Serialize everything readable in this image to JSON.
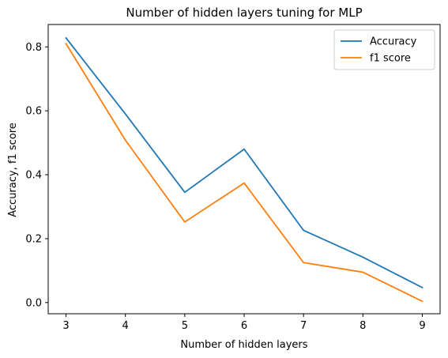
{
  "chart_data": {
    "type": "line",
    "title": "Number of hidden layers tuning for MLP",
    "xlabel": "Number of hidden layers",
    "ylabel": "Accuracy, f1 score",
    "x": [
      3,
      4,
      5,
      6,
      7,
      8,
      9
    ],
    "xticks": [
      "3",
      "4",
      "5",
      "6",
      "7",
      "8",
      "9"
    ],
    "yticks": [
      "0.0",
      "0.2",
      "0.4",
      "0.6",
      "0.8"
    ],
    "xlim": [
      2.7,
      9.3
    ],
    "ylim": [
      -0.035,
      0.87
    ],
    "legend_position": "top-right",
    "series": [
      {
        "name": "Accuracy",
        "color": "#1f77b4",
        "values": [
          0.828,
          0.59,
          0.345,
          0.48,
          0.226,
          0.142,
          0.047
        ]
      },
      {
        "name": "f1 score",
        "color": "#ff7f0e",
        "values": [
          0.81,
          0.508,
          0.252,
          0.374,
          0.125,
          0.095,
          0.004
        ]
      }
    ]
  }
}
